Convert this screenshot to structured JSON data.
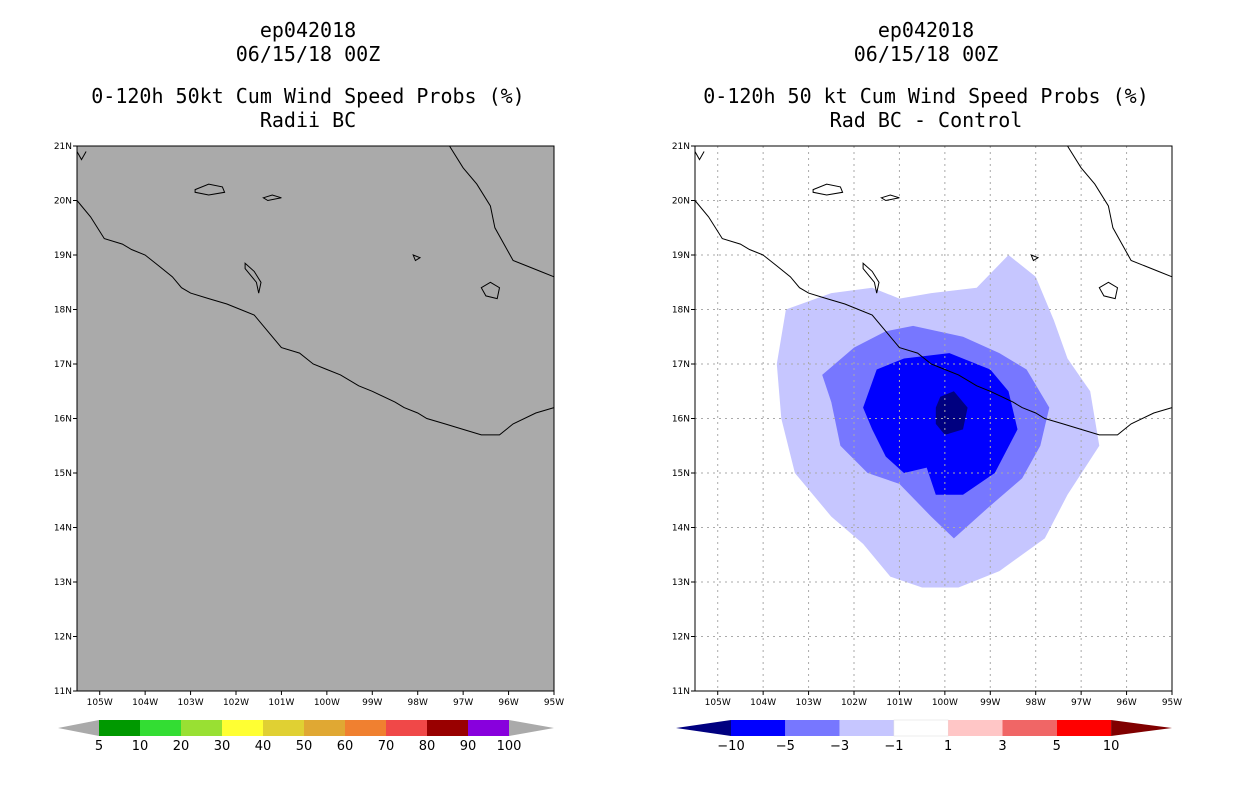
{
  "left_panel": {
    "storm_id": "ep042018",
    "date": "06/15/18 00Z",
    "title": "0-120h 50kt Cum Wind Speed Probs (%)",
    "subtitle": "Radii BC",
    "background_color": "#aaaaaa",
    "colorbar": {
      "colors": [
        "#009900",
        "#33dd33",
        "#99e033",
        "#ffff33",
        "#e0d033",
        "#e0a833",
        "#f08030",
        "#f04848",
        "#990000",
        "#8800dd"
      ],
      "labels": [
        "5",
        "10",
        "20",
        "30",
        "40",
        "50",
        "60",
        "70",
        "80",
        "90",
        "100"
      ],
      "end_color": "#aaaaaa"
    }
  },
  "right_panel": {
    "storm_id": "ep042018",
    "date": "06/15/18 00Z",
    "title": "0-120h 50 kt Cum Wind Speed Probs (%)",
    "subtitle": "Rad BC - Control",
    "colorbar": {
      "colors": [
        "#0000ff",
        "#7777ff",
        "#c6c6ff",
        "#ffffff",
        "#ffc6c6",
        "#f06666",
        "#ff0000"
      ],
      "labels": [
        "-10",
        "-5",
        "-3",
        "-1",
        "1",
        "3",
        "5",
        "10"
      ],
      "low_end_color": "#000080",
      "high_end_color": "#800000"
    },
    "contour_colors": [
      "#c6c6ff",
      "#7777ff",
      "#0000ff",
      "#000080"
    ]
  },
  "map_axes": {
    "lat_labels": [
      "11N",
      "12N",
      "13N",
      "14N",
      "15N",
      "16N",
      "17N",
      "18N",
      "19N",
      "20N",
      "21N"
    ],
    "lon_labels": [
      "105W",
      "104W",
      "103W",
      "102W",
      "101W",
      "100W",
      "99W",
      "98W",
      "97W",
      "96W",
      "95W"
    ]
  },
  "colors": {
    "coastline": "#000000",
    "grid": "#aaaaaa"
  }
}
